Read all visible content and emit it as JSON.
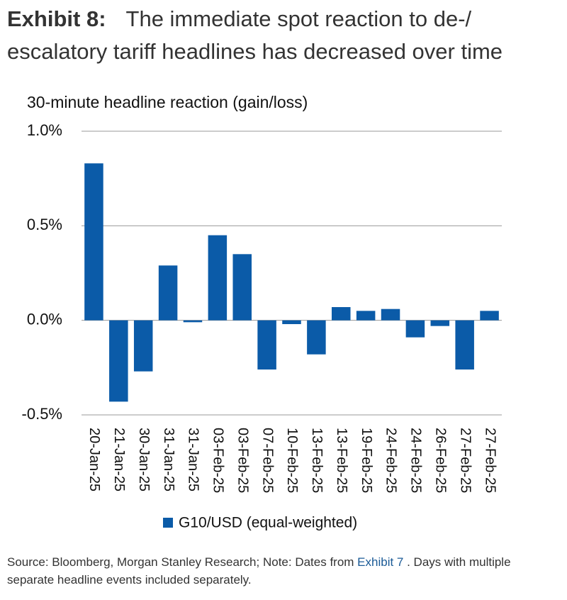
{
  "chart_data": {
    "type": "bar",
    "exhibit": "Exhibit 8:",
    "title": "The immediate spot reaction to de-/ escalatory tariff headlines has decreased over time",
    "y_label": "30-minute headline reaction (gain/loss)",
    "categories": [
      "20-Jan-25",
      "21-Jan-25",
      "30-Jan-25",
      "31-Jan-25",
      "31-Jan-25",
      "03-Feb-25",
      "03-Feb-25",
      "07-Feb-25",
      "10-Feb-25",
      "13-Feb-25",
      "13-Feb-25",
      "19-Feb-25",
      "24-Feb-25",
      "24-Feb-25",
      "26-Feb-25",
      "27-Feb-25",
      "27-Feb-25"
    ],
    "series": [
      {
        "name": "G10/USD (equal-weighted)",
        "color": "#0b5ba8",
        "values": [
          0.83,
          -0.43,
          -0.27,
          0.29,
          -0.01,
          0.45,
          0.35,
          -0.26,
          -0.02,
          -0.18,
          0.07,
          0.05,
          0.06,
          -0.09,
          -0.03,
          -0.26,
          0.05
        ]
      }
    ],
    "ylim": [
      -0.5,
      1.0
    ],
    "yticks": [
      {
        "value": 1.0,
        "label": "1.0%"
      },
      {
        "value": 0.5,
        "label": "0.5%"
      },
      {
        "value": 0,
        "label": "0.0%"
      },
      {
        "value": -0.5,
        "label": "-0.5%"
      }
    ],
    "grid": true
  },
  "footnote": {
    "before": "Source: Bloomberg, Morgan Stanley Research; Note: Dates from ",
    "link": "Exhibit 7",
    "after": " . Days with multiple separate headline events included separately."
  }
}
